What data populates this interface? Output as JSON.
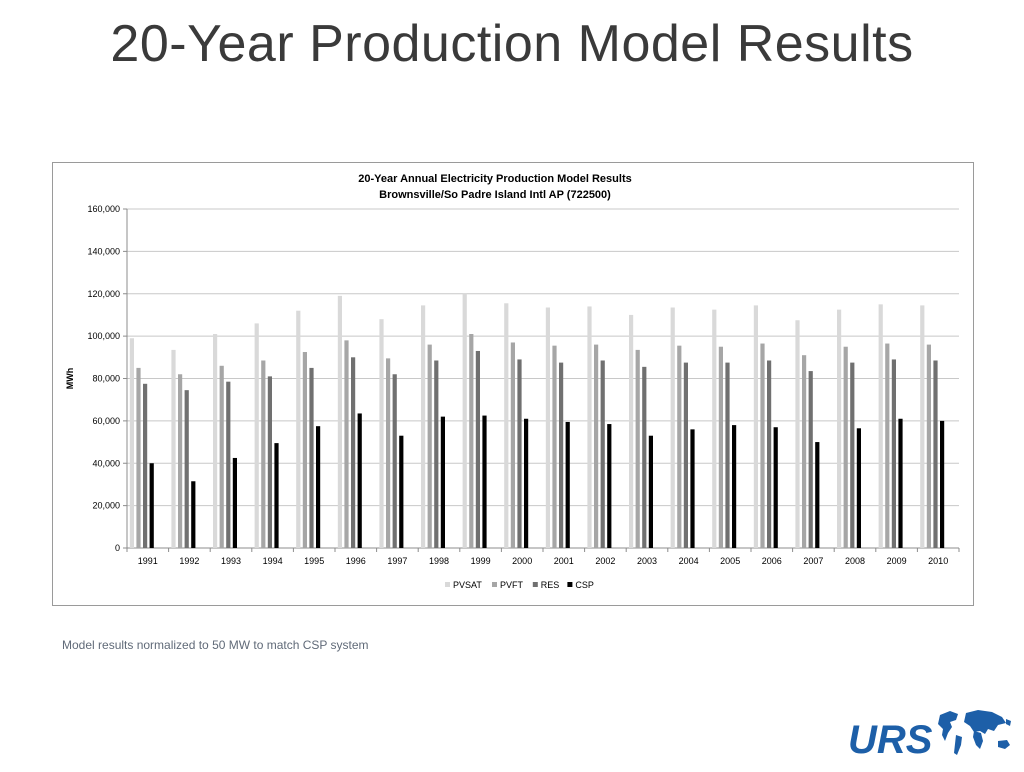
{
  "slide": {
    "title": "20-Year Production Model Results",
    "caption": "Model results normalized to 50 MW to match CSP system"
  },
  "logo": {
    "text": "URS",
    "color": "#1d5fa8",
    "icon": "globe-map-icon"
  },
  "chart_data": {
    "type": "bar",
    "title": "20-Year Annual Electricity Production Model Results",
    "subtitle": "Brownsville/So Padre Island Intl AP (722500)",
    "xlabel": "",
    "ylabel": "MWh",
    "ylim": [
      0,
      160000
    ],
    "yticks": [
      0,
      20000,
      40000,
      60000,
      80000,
      100000,
      120000,
      140000,
      160000
    ],
    "ytick_labels": [
      "0",
      "20,000",
      "40,000",
      "60,000",
      "80,000",
      "100,000",
      "120,000",
      "140,000",
      "160,000"
    ],
    "grid": true,
    "legend_position": "bottom",
    "categories": [
      "1991",
      "1992",
      "1993",
      "1994",
      "1995",
      "1996",
      "1997",
      "1998",
      "1999",
      "2000",
      "2001",
      "2002",
      "2003",
      "2004",
      "2005",
      "2006",
      "2007",
      "2008",
      "2009",
      "2010"
    ],
    "series": [
      {
        "name": "PVSAT",
        "color": "#d9d9d9",
        "values": [
          99000,
          93500,
          101000,
          106000,
          112000,
          119000,
          108000,
          114500,
          120000,
          115500,
          113500,
          114000,
          110000,
          113500,
          112500,
          114500,
          107500,
          112500,
          115000,
          114500
        ]
      },
      {
        "name": "PVFT",
        "color": "#a6a6a6",
        "values": [
          85000,
          82000,
          86000,
          88500,
          92500,
          98000,
          89500,
          96000,
          101000,
          97000,
          95500,
          96000,
          93500,
          95500,
          95000,
          96500,
          91000,
          95000,
          96500,
          96000
        ]
      },
      {
        "name": "RES",
        "color": "#707070",
        "values": [
          77500,
          74500,
          78500,
          81000,
          85000,
          90000,
          82000,
          88500,
          93000,
          89000,
          87500,
          88500,
          85500,
          87500,
          87500,
          88500,
          83500,
          87500,
          89000,
          88500
        ]
      },
      {
        "name": "CSP",
        "color": "#000000",
        "values": [
          40000,
          31500,
          42500,
          49500,
          57500,
          63500,
          53000,
          62000,
          62500,
          61000,
          59500,
          58500,
          53000,
          56000,
          58000,
          57000,
          50000,
          56500,
          61000,
          60000
        ]
      }
    ]
  }
}
